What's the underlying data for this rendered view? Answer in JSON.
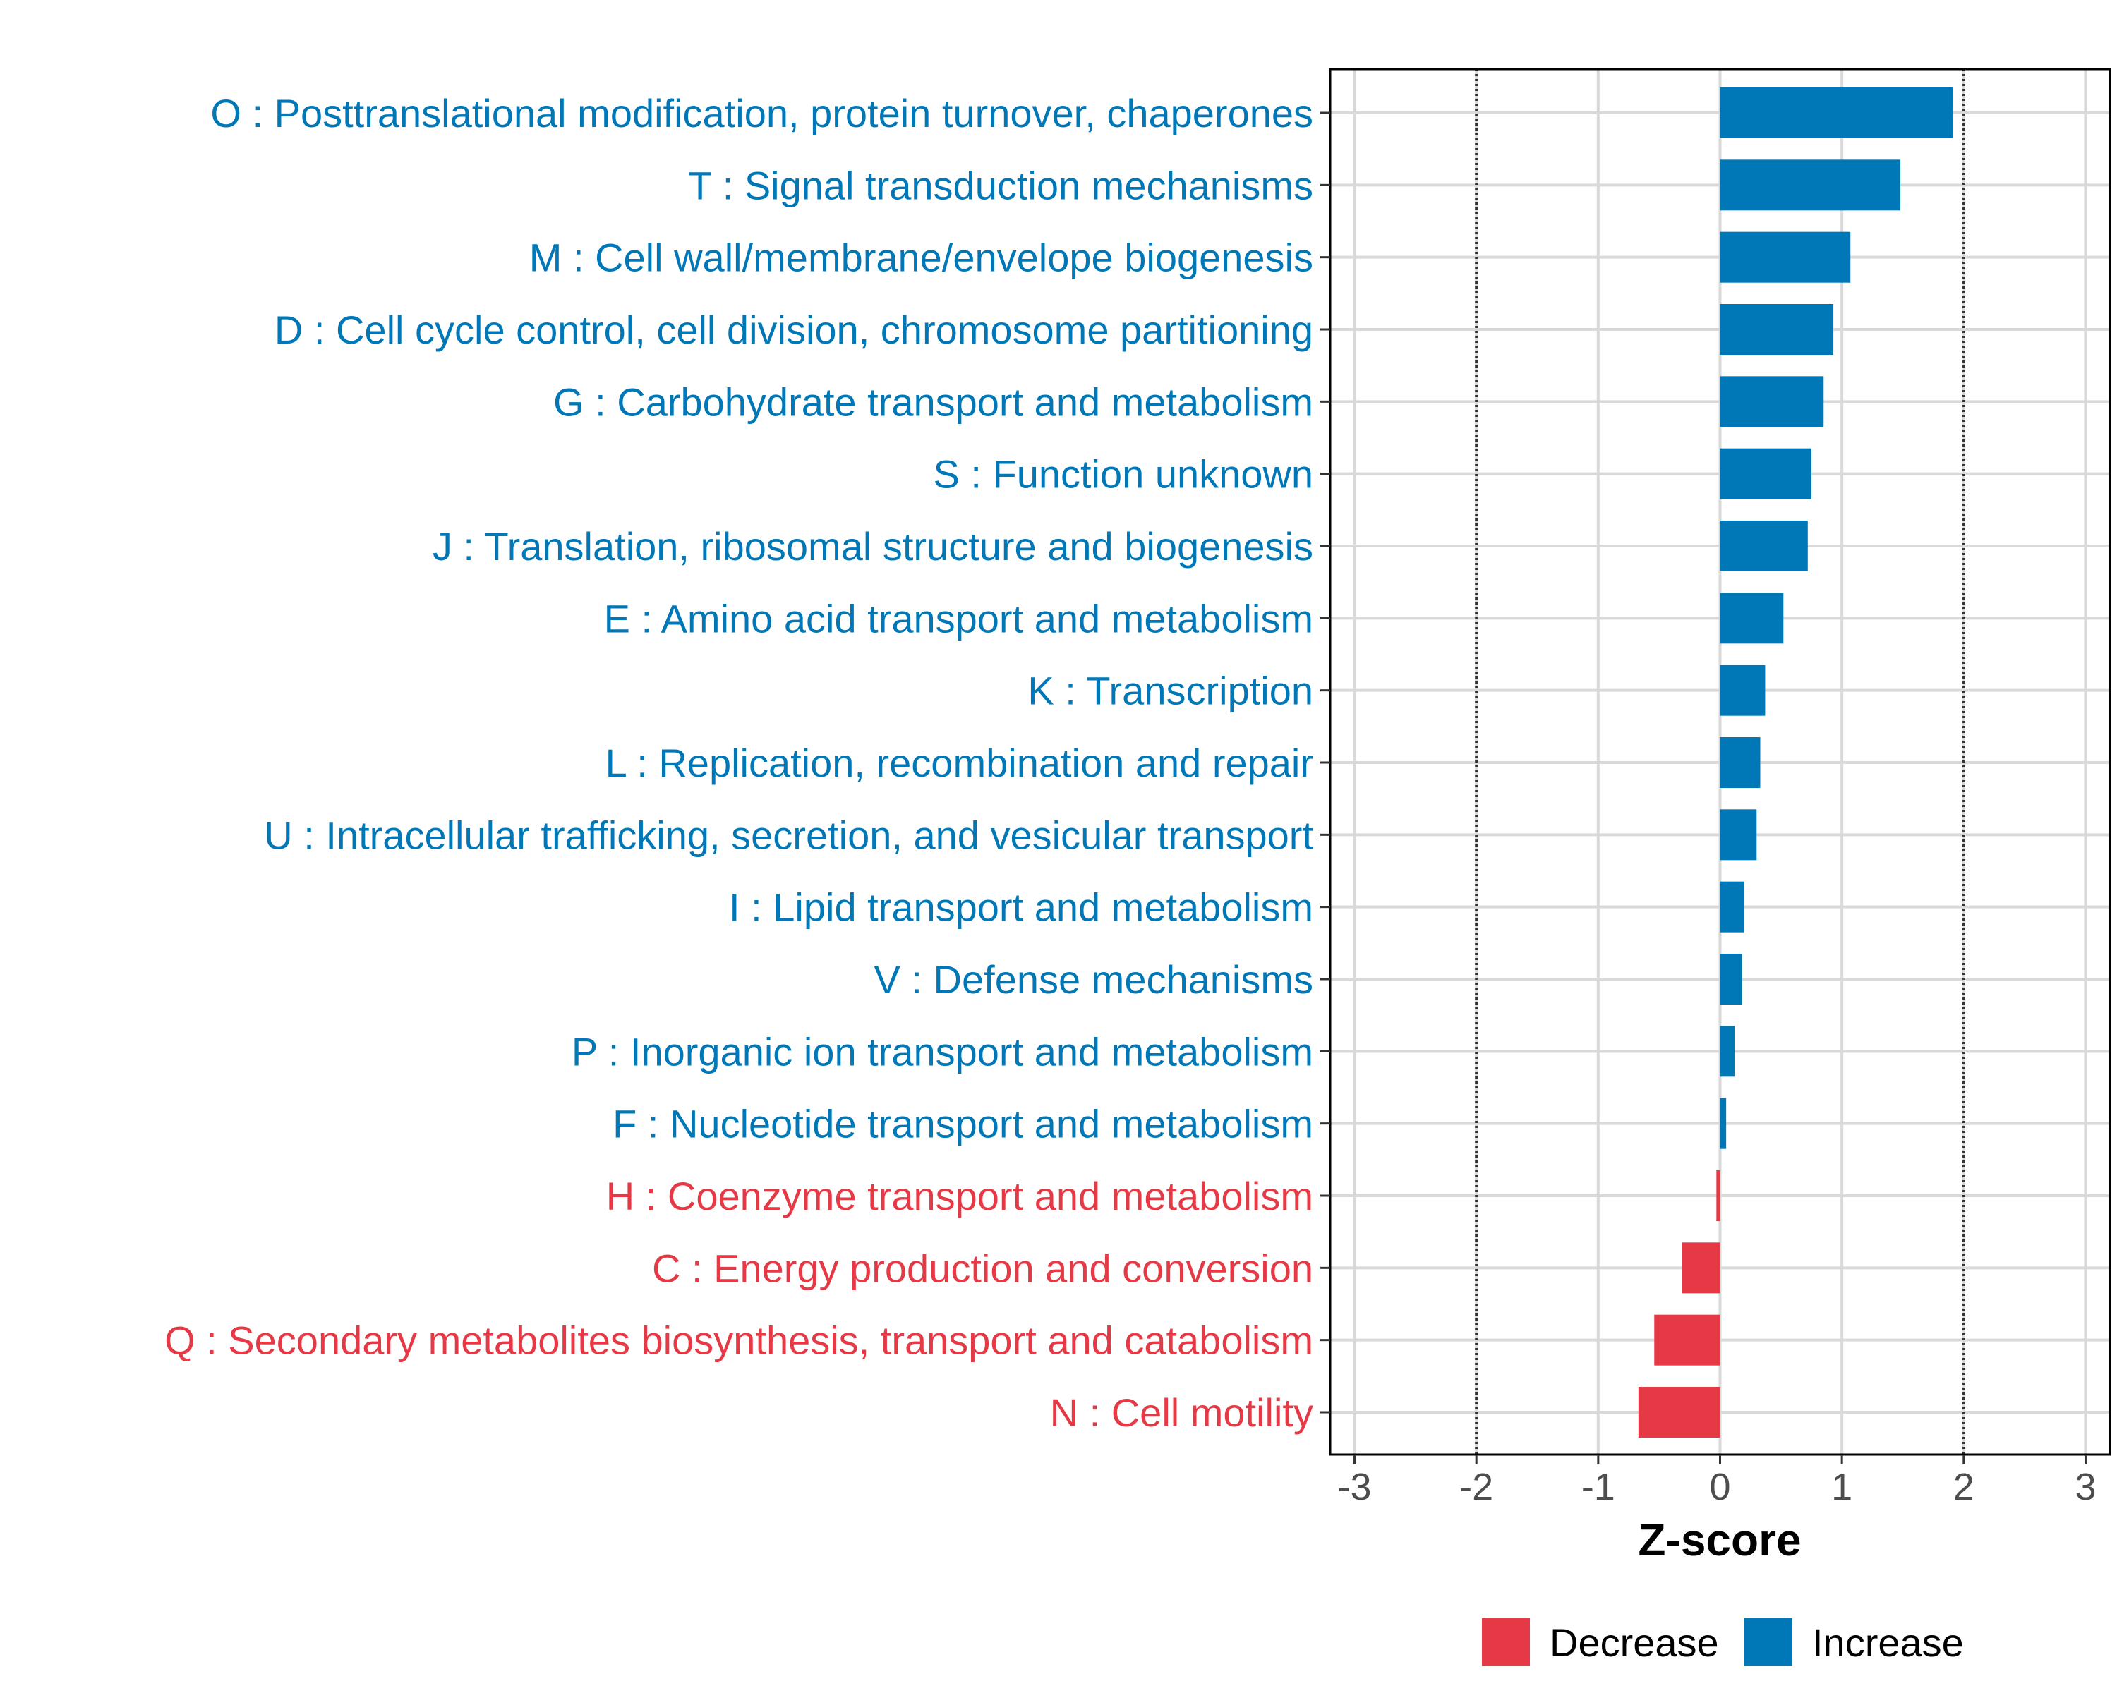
{
  "chart_data": {
    "type": "bar",
    "orientation": "horizontal",
    "xlabel": "Z-score",
    "xlim": [
      -3.2,
      3.2
    ],
    "xticks": [
      -3,
      -2,
      -1,
      0,
      1,
      2,
      3
    ],
    "xtick_labels": [
      "-3",
      "-2",
      "-1",
      "0",
      "1",
      "2",
      "3"
    ],
    "reference_lines": [
      -2,
      2
    ],
    "grid": true,
    "categories": [
      "O : Posttranslational modification, protein turnover, chaperones",
      "T : Signal transduction mechanisms",
      "M : Cell wall/membrane/envelope biogenesis",
      "D : Cell cycle control, cell division, chromosome partitioning",
      "G : Carbohydrate transport and metabolism",
      "S : Function unknown",
      "J : Translation, ribosomal structure and biogenesis",
      "E : Amino acid transport and metabolism",
      "K : Transcription",
      "L : Replication, recombination and repair",
      "U : Intracellular trafficking, secretion, and vesicular transport",
      "I : Lipid transport and metabolism",
      "V : Defense mechanisms",
      "P : Inorganic ion transport and metabolism",
      "F : Nucleotide transport and metabolism",
      "H : Coenzyme transport and metabolism",
      "C : Energy production and conversion",
      "Q : Secondary metabolites biosynthesis, transport and catabolism",
      "N : Cell motility"
    ],
    "values": [
      1.91,
      1.48,
      1.07,
      0.93,
      0.85,
      0.75,
      0.72,
      0.52,
      0.37,
      0.33,
      0.3,
      0.2,
      0.18,
      0.12,
      0.05,
      -0.03,
      -0.31,
      -0.54,
      -0.67
    ],
    "groups": [
      "Increase",
      "Increase",
      "Increase",
      "Increase",
      "Increase",
      "Increase",
      "Increase",
      "Increase",
      "Increase",
      "Increase",
      "Increase",
      "Increase",
      "Increase",
      "Increase",
      "Increase",
      "Decrease",
      "Decrease",
      "Decrease",
      "Decrease"
    ],
    "legend": {
      "position": "bottom",
      "entries": [
        {
          "label": "Decrease",
          "color": "#e63946"
        },
        {
          "label": "Increase",
          "color": "#0077b6"
        }
      ]
    }
  },
  "colors": {
    "increase": "#0077b6",
    "decrease": "#e63946",
    "grid": "#d9d9d9",
    "axis": "#000000",
    "tick_text": "#4d4d4d"
  }
}
